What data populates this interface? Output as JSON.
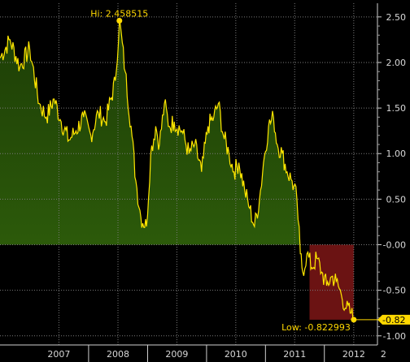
{
  "chart_data": {
    "type": "area",
    "x_range": [
      "2006-07-01",
      "2012-11-25"
    ],
    "ylim": [
      -1.1,
      2.65
    ],
    "y_ticks": [
      2.5,
      2.0,
      1.5,
      1.0,
      0.5,
      0.0,
      -0.5,
      -1.0
    ],
    "y_tick_labels": [
      "2.50",
      "2.00",
      "1.50",
      "1.00",
      "0.50",
      "-0.00",
      "-0.50",
      "-1.00"
    ],
    "x_labels": [
      {
        "label": "2007",
        "date": "2007-07-01"
      },
      {
        "label": "2008",
        "date": "2008-07-01"
      },
      {
        "label": "2009",
        "date": "2009-07-01"
      },
      {
        "label": "2010",
        "date": "2010-07-01"
      },
      {
        "label": "2011",
        "date": "2011-07-01"
      },
      {
        "label": "2012",
        "date": "2012-07-01"
      },
      {
        "label": "2",
        "date": "2013-01-01"
      }
    ],
    "x_year_boundaries": [
      "2008-01-01",
      "2009-01-01",
      "2010-01-01",
      "2011-01-01",
      "2012-01-01"
    ],
    "grid": true,
    "colors": {
      "line": "#ffe600",
      "positive_fill": "#1d3d06",
      "negative_fill": "#6b1313",
      "annotation": "#ffd800"
    },
    "series": [
      {
        "points": [
          [
            "2006-07-01",
            2.05
          ],
          [
            "2006-09-01",
            2.25
          ],
          [
            "2006-11-01",
            1.95
          ],
          [
            "2007-01-01",
            2.15
          ],
          [
            "2007-03-01",
            1.55
          ],
          [
            "2007-04-15",
            1.4
          ],
          [
            "2007-06-01",
            1.6
          ],
          [
            "2007-07-15",
            1.35
          ],
          [
            "2007-09-01",
            1.15
          ],
          [
            "2007-10-15",
            1.25
          ],
          [
            "2007-12-01",
            1.4
          ],
          [
            "2008-01-15",
            1.2
          ],
          [
            "2008-03-01",
            1.45
          ],
          [
            "2008-04-15",
            1.35
          ],
          [
            "2008-06-15",
            1.8
          ],
          [
            "2008-07-10",
            2.458515
          ],
          [
            "2008-08-15",
            1.9
          ],
          [
            "2008-09-20",
            1.3
          ],
          [
            "2008-10-20",
            0.7
          ],
          [
            "2008-11-20",
            0.3
          ],
          [
            "2008-12-25",
            0.2
          ],
          [
            "2009-01-20",
            1.0
          ],
          [
            "2009-02-20",
            1.3
          ],
          [
            "2009-03-15",
            1.1
          ],
          [
            "2009-04-15",
            1.55
          ],
          [
            "2009-05-15",
            1.3
          ],
          [
            "2009-06-15",
            1.35
          ],
          [
            "2009-08-01",
            1.25
          ],
          [
            "2009-09-15",
            1.0
          ],
          [
            "2009-10-20",
            1.1
          ],
          [
            "2009-12-01",
            0.8
          ],
          [
            "2010-01-10",
            1.3
          ],
          [
            "2010-02-15",
            1.4
          ],
          [
            "2010-03-15",
            1.55
          ],
          [
            "2010-04-15",
            1.2
          ],
          [
            "2010-05-20",
            1.0
          ],
          [
            "2010-06-20",
            0.8
          ],
          [
            "2010-07-20",
            0.9
          ],
          [
            "2010-08-25",
            0.6
          ],
          [
            "2010-09-25",
            0.4
          ],
          [
            "2010-10-25",
            0.2
          ],
          [
            "2010-11-25",
            0.5
          ],
          [
            "2010-12-20",
            0.9
          ],
          [
            "2011-01-20",
            1.3
          ],
          [
            "2011-02-20",
            1.4
          ],
          [
            "2011-03-15",
            1.1
          ],
          [
            "2011-04-15",
            1.0
          ],
          [
            "2011-05-15",
            0.8
          ],
          [
            "2011-06-15",
            0.7
          ],
          [
            "2011-07-15",
            0.5
          ],
          [
            "2011-08-05",
            -0.1
          ],
          [
            "2011-08-20",
            -0.3
          ],
          [
            "2011-09-15",
            -0.1
          ],
          [
            "2011-10-15",
            -0.25
          ],
          [
            "2011-11-15",
            -0.15
          ],
          [
            "2011-12-15",
            -0.3
          ],
          [
            "2012-01-15",
            -0.45
          ],
          [
            "2012-02-15",
            -0.35
          ],
          [
            "2012-03-15",
            -0.4
          ],
          [
            "2012-04-15",
            -0.55
          ],
          [
            "2012-05-15",
            -0.7
          ],
          [
            "2012-06-15",
            -0.75
          ],
          [
            "2012-07-01",
            -0.822993
          ]
        ]
      }
    ],
    "negative_shade": {
      "from": "2011-10-01",
      "to": "2012-07-01",
      "top": 0.0,
      "bottom": -0.822993
    },
    "annotations": {
      "high": {
        "text": "Hi:  2.458515",
        "date": "2008-07-10",
        "value": 2.458515
      },
      "low": {
        "text": "Low:  -0.822993",
        "date": "2012-07-01",
        "value": -0.822993
      },
      "last": {
        "text": "-0.82",
        "value": -0.822993
      }
    }
  }
}
